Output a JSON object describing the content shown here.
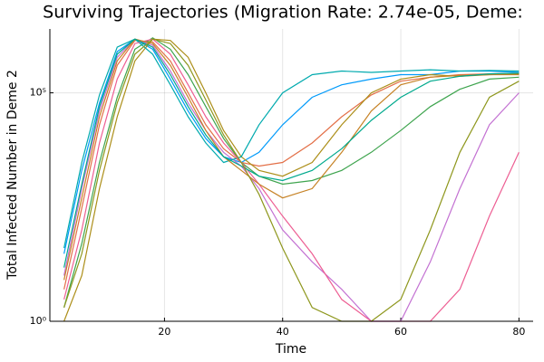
{
  "chart_data": {
    "type": "line",
    "title": "Surviving Trajectories (Migration Rate: 2.74e-05, Deme:",
    "x_label": "Time",
    "y_label": "Total Infected Number in Deme 2",
    "log_y": true,
    "grid": true,
    "xlim": [
      0.6,
      82.4
    ],
    "ylim": [
      1,
      2500000
    ],
    "xticks": [
      20,
      40,
      60,
      80
    ],
    "yticks": [
      {
        "value": 1,
        "label": "10⁰"
      },
      {
        "value": 100000,
        "label": "10⁵"
      }
    ],
    "x": [
      3,
      6,
      9,
      12,
      15,
      18,
      21,
      24,
      27,
      30,
      33,
      36,
      40,
      45,
      50,
      55,
      60,
      65,
      70,
      75,
      80
    ],
    "series": [
      {
        "color": "#009AFA",
        "values": [
          30,
          2000,
          60000,
          800000,
          1500000,
          900000,
          200000,
          40000,
          10000,
          4000,
          3000,
          5000,
          20000,
          80000,
          150000,
          200000,
          250000,
          250000,
          300000,
          300000,
          280000
        ]
      },
      {
        "color": "#E36F47",
        "values": [
          5,
          300,
          20000,
          400000,
          1400000,
          1300000,
          500000,
          100000,
          20000,
          6000,
          3000,
          2500,
          3000,
          8000,
          30000,
          90000,
          180000,
          220000,
          250000,
          260000,
          270000
        ]
      },
      {
        "color": "#3EA44E",
        "values": [
          2,
          50,
          3000,
          80000,
          900000,
          1600000,
          900000,
          250000,
          50000,
          10000,
          3000,
          1500,
          1000,
          1200,
          2000,
          5000,
          15000,
          50000,
          120000,
          200000,
          220000
        ]
      },
      {
        "color": "#C371D2",
        "values": [
          10,
          800,
          40000,
          600000,
          1500000,
          1100000,
          300000,
          60000,
          15000,
          5000,
          2500,
          800,
          100,
          20,
          5,
          1,
          1,
          20,
          800,
          20000,
          100000
        ]
      },
      {
        "color": "#AC8E18",
        "values": [
          1,
          10,
          800,
          30000,
          500000,
          1500000,
          1400000,
          600000,
          100000,
          15000,
          4000,
          2000,
          1500,
          3000,
          20000,
          100000,
          200000,
          250000,
          230000,
          250000,
          260000
        ]
      },
      {
        "color": "#00AAAE",
        "values": [
          40,
          3000,
          90000,
          1000000,
          1500000,
          700000,
          150000,
          30000,
          8000,
          3000,
          4000,
          20000,
          100000,
          250000,
          300000,
          280000,
          300000,
          320000,
          300000,
          310000,
          300000
        ]
      },
      {
        "color": "#ED5E93",
        "values": [
          3,
          100,
          8000,
          200000,
          1200000,
          1500000,
          700000,
          150000,
          30000,
          8000,
          3000,
          1000,
          200,
          30,
          3,
          1,
          1,
          1,
          5,
          200,
          5000
        ]
      },
      {
        "color": "#C68225",
        "values": [
          8,
          500,
          30000,
          500000,
          1500000,
          1200000,
          400000,
          80000,
          15000,
          4000,
          2000,
          1000,
          500,
          800,
          5000,
          40000,
          150000,
          220000,
          240000,
          250000,
          250000
        ]
      },
      {
        "color": "#00A98D",
        "values": [
          15,
          1000,
          50000,
          700000,
          1500000,
          1000000,
          250000,
          50000,
          12000,
          4000,
          2500,
          1500,
          1200,
          2000,
          6000,
          25000,
          80000,
          180000,
          230000,
          260000,
          270000
        ]
      },
      {
        "color": "#8E971D",
        "values": [
          2,
          30,
          2000,
          60000,
          700000,
          1500000,
          1200000,
          400000,
          70000,
          12000,
          3000,
          600,
          40,
          2,
          1,
          1,
          3,
          100,
          5000,
          80000,
          180000
        ]
      }
    ]
  }
}
